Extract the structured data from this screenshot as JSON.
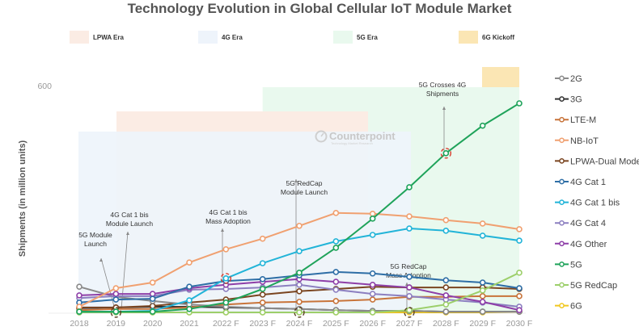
{
  "chart_data": {
    "type": "line",
    "title": "Technology Evolution in Global Cellular IoT Module Market",
    "xlabel": "",
    "ylabel": "Shipments (in million units)",
    "ylim": [
      0,
      600
    ],
    "yticks": [
      "600"
    ],
    "grid": false,
    "legend_position": "right",
    "categories": [
      "2018",
      "2019",
      "2020",
      "2021",
      "2022 F",
      "2023 F",
      "2024 F",
      "2025 F",
      "2026 F",
      "2027 F",
      "2028 F",
      "2029 F",
      "2030 F"
    ],
    "eras": [
      {
        "name": "LPWA Era",
        "color": "#fbece4",
        "start": "2019",
        "end": "2026 F"
      },
      {
        "name": "4G Era",
        "color": "#eef4fb",
        "start": "2018",
        "end": "2027 F"
      },
      {
        "name": "5G Era",
        "color": "#e9f9ee",
        "start": "2023 F",
        "end": "2030 F"
      },
      {
        "name": "6G Kickoff",
        "color": "#fbe6b4",
        "start": "2029 F",
        "end": "2030 F"
      }
    ],
    "series": [
      {
        "name": "2G",
        "color": "#8a8a8a",
        "values": [
          68,
          41,
          30,
          21,
          15,
          11,
          9,
          6,
          4,
          4,
          2,
          2,
          2
        ]
      },
      {
        "name": "3G",
        "color": "#333333",
        "values": [
          11,
          13,
          15,
          15,
          13,
          11,
          9,
          6,
          4,
          4,
          2,
          2,
          2
        ]
      },
      {
        "name": "LTE-M",
        "color": "#c8743a",
        "values": [
          6,
          9,
          9,
          13,
          21,
          26,
          28,
          30,
          34,
          41,
          41,
          43,
          43
        ]
      },
      {
        "name": "NB-IoT",
        "color": "#f0a070",
        "values": [
          15,
          64,
          79,
          132,
          167,
          195,
          229,
          263,
          261,
          254,
          244,
          235,
          220
        ]
      },
      {
        "name": "LPWA-Dual Mode",
        "color": "#7a4520",
        "values": [
          13,
          13,
          17,
          26,
          34,
          47,
          56,
          62,
          68,
          66,
          66,
          66,
          62
        ]
      },
      {
        "name": "4G Cat 1",
        "color": "#2e6ea6",
        "values": [
          26,
          34,
          36,
          68,
          83,
          88,
          98,
          107,
          103,
          94,
          85,
          79,
          64
        ]
      },
      {
        "name": "4G Cat 1 bis",
        "color": "#22b4d8",
        "values": [
          2,
          2,
          4,
          32,
          90,
          130,
          162,
          188,
          205,
          222,
          216,
          203,
          190
        ]
      },
      {
        "name": "4G Cat 4",
        "color": "#8c7fc0",
        "values": [
          38,
          43,
          43,
          60,
          62,
          66,
          73,
          60,
          49,
          43,
          34,
          26,
          15
        ]
      },
      {
        "name": "4G Other",
        "color": "#8e3fa8",
        "values": [
          45,
          49,
          49,
          64,
          73,
          81,
          88,
          81,
          73,
          66,
          45,
          28,
          6
        ]
      },
      {
        "name": "5G",
        "color": "#1fa35a",
        "values": [
          2,
          2,
          2,
          9,
          26,
          62,
          105,
          171,
          248,
          331,
          421,
          494,
          553
        ]
      },
      {
        "name": "5G RedCap",
        "color": "#9ccf6a",
        "values": [
          0,
          0,
          0,
          0,
          0,
          0,
          0,
          0,
          0,
          6,
          21,
          58,
          105
        ]
      },
      {
        "name": "6G",
        "color": "#f0c820",
        "values": [
          0,
          0,
          0,
          0,
          0,
          0,
          0,
          0,
          0,
          0,
          0,
          0,
          2
        ]
      }
    ],
    "annotations": [
      {
        "text": [
          "5G Module",
          "Launch"
        ],
        "category": "2019"
      },
      {
        "text": [
          "4G Cat 1 bis",
          "Module Launch"
        ],
        "category": "2019"
      },
      {
        "text": [
          "4G Cat 1 bis",
          "Mass Adoption"
        ],
        "category": "2022 F"
      },
      {
        "text": [
          "5G RedCap",
          "Module Launch"
        ],
        "category": "2024 F"
      },
      {
        "text": [
          "5G RedCap",
          "Mass Adoption"
        ],
        "category": "2027 F"
      },
      {
        "text": [
          "5G Crosses 4G",
          "Shipments"
        ],
        "category": "2028 F"
      }
    ],
    "highlighted_points": [
      {
        "series": "5G",
        "category": "2028 F"
      },
      {
        "series": "4G Cat 1 bis",
        "category": "2022 F"
      },
      {
        "series": "6G",
        "category": "2019"
      },
      {
        "series": "6G",
        "category": "2024 F"
      },
      {
        "series": "6G",
        "category": "2027 F"
      }
    ],
    "watermark": {
      "brand": "Counterpoint",
      "tagline": "Technology Market Research"
    }
  }
}
